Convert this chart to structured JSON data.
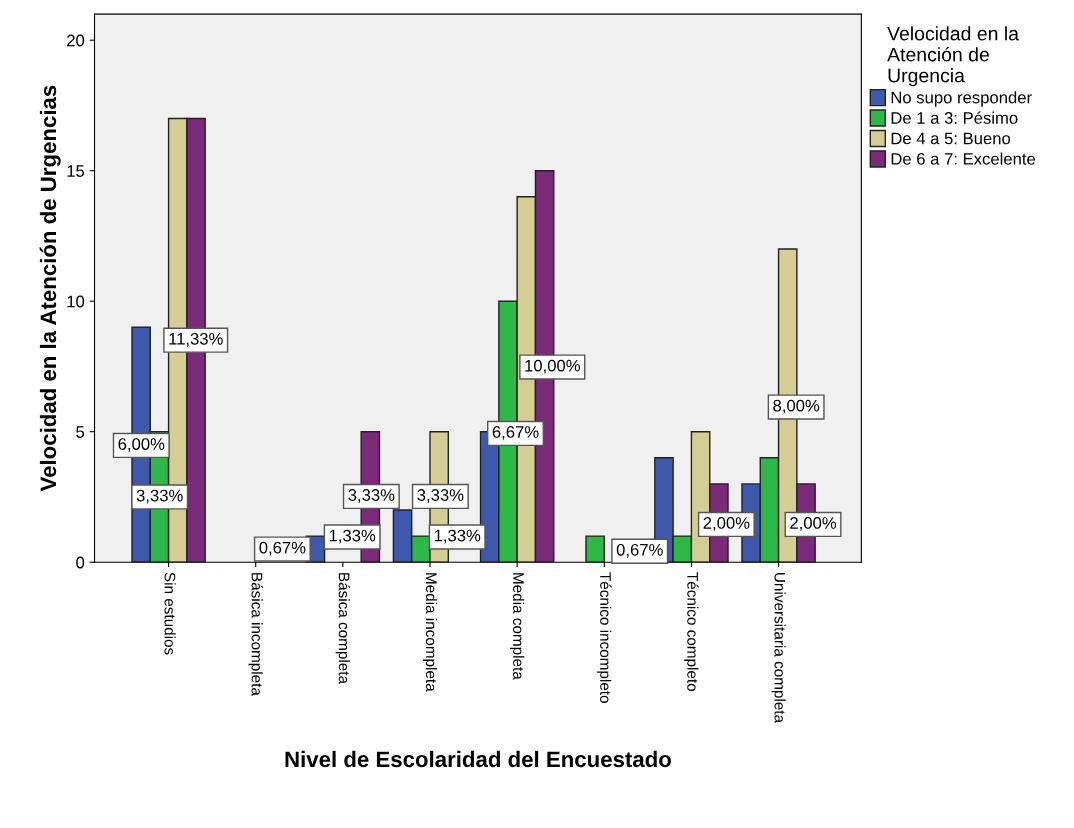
{
  "chart_data": {
    "type": "bar",
    "xlabel": "Nivel de Escolaridad del Encuestado",
    "ylabel": "Velocidad en la Atención de Urgencias",
    "legend_title": "Velocidad en la\nAtención de\nUrgencia",
    "legend": "top right",
    "categories": [
      "Sin estudios",
      "Básica incompleta",
      "Básica completa",
      "Media incompleta",
      "Media completa",
      "Técnico incompleto",
      "Técnico completo",
      "Universitaria completa"
    ],
    "ylim": [
      0,
      21
    ],
    "yticks": [
      0,
      5,
      10,
      15,
      20
    ],
    "grid": false,
    "series": [
      {
        "name": "No supo responder",
        "color": "#3e58ac",
        "values": [
          9,
          0,
          1,
          2,
          5,
          0,
          4,
          3
        ]
      },
      {
        "name": "De 1 a 3: Pésimo",
        "color": "#2eb848",
        "values": [
          5,
          0,
          null,
          1,
          10,
          1,
          1,
          4
        ]
      },
      {
        "name": "De 4 a 5: Bueno",
        "color": "#d4ce95",
        "values": [
          17,
          0,
          null,
          5,
          14,
          0,
          5,
          12
        ]
      },
      {
        "name": "De 6 a 7: Excelente",
        "color": "#7b2979",
        "values": [
          17,
          0,
          5,
          null,
          15,
          0,
          3,
          3
        ]
      }
    ],
    "annotations": [
      "6,00%",
      "3,33%",
      "11,33%",
      "0,67%",
      "1,33%",
      "3,33%",
      "3,33%",
      "1,33%",
      "6,67%",
      "10,00%",
      "0,67%",
      "2,00%",
      "8,00%",
      "2,00%"
    ]
  }
}
